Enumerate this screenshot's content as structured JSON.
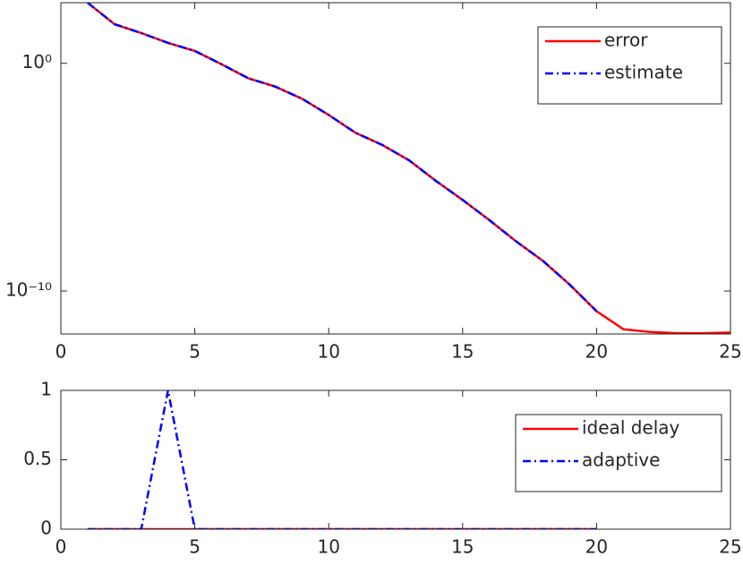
{
  "chart_data": [
    {
      "type": "line",
      "yscale": "log",
      "legend": "upper right",
      "x": [
        1,
        2,
        3,
        4,
        5,
        6,
        7,
        8,
        9,
        10,
        11,
        12,
        13,
        14,
        15,
        16,
        17,
        18,
        19,
        20,
        21,
        22,
        23,
        24,
        25
      ],
      "series": [
        {
          "name": "error",
          "color": "#ff0000",
          "style": "solid",
          "values": [
            457,
            52.5,
            21.4,
            7.9,
            3.5,
            0.91,
            0.22,
            0.095,
            0.028,
            0.0054,
            0.00089,
            0.00026,
            5.5e-05,
            6.9e-06,
            1e-06,
            1.3e-07,
            1.5e-08,
            2.1e-09,
            1.9e-10,
            1.3e-11,
            2.1e-12,
            1.6e-12,
            1.4e-12,
            1.4e-12,
            1.5e-12
          ]
        },
        {
          "name": "estimate",
          "color": "#0000ff",
          "style": "dashdot",
          "values": [
            457,
            52.5,
            21.4,
            7.9,
            3.5,
            0.91,
            0.22,
            0.095,
            0.028,
            0.0054,
            0.00089,
            0.00026,
            5.5e-05,
            6.9e-06,
            1e-06,
            1.3e-07,
            1.5e-08,
            2.1e-09,
            1.9e-10,
            1.3e-11,
            null,
            null,
            null,
            null,
            null
          ]
        }
      ],
      "xlim": [
        0,
        25
      ],
      "xticks": [
        0,
        5,
        10,
        15,
        20,
        25
      ],
      "ylim": [
        1.3e-12,
        460
      ],
      "yticks": [
        {
          "value": 1,
          "label": "10⁰"
        },
        {
          "value": 1e-10,
          "label": "10⁻¹⁰"
        }
      ]
    },
    {
      "type": "line",
      "legend": "upper right",
      "x": [
        1,
        2,
        3,
        4,
        5,
        6,
        7,
        8,
        9,
        10,
        11,
        12,
        13,
        14,
        15,
        16,
        17,
        18,
        19,
        20
      ],
      "series": [
        {
          "name": "ideal delay",
          "color": "#ff0000",
          "style": "solid",
          "values": [
            0,
            0,
            0,
            0,
            0,
            0,
            0,
            0,
            0,
            0,
            0,
            0,
            0,
            0,
            0,
            0,
            0,
            0,
            0,
            0
          ]
        },
        {
          "name": "adaptive",
          "color": "#0000ff",
          "style": "dashdot",
          "values": [
            0,
            0,
            0,
            1,
            0,
            0,
            0,
            0,
            0,
            0,
            0,
            0,
            0,
            0,
            0,
            0,
            0,
            0,
            0,
            0
          ]
        }
      ],
      "xlim": [
        0,
        25
      ],
      "xticks": [
        0,
        5,
        10,
        15,
        20,
        25
      ],
      "ylim": [
        0,
        1
      ],
      "yticks": [
        0,
        0.5,
        1
      ]
    }
  ]
}
